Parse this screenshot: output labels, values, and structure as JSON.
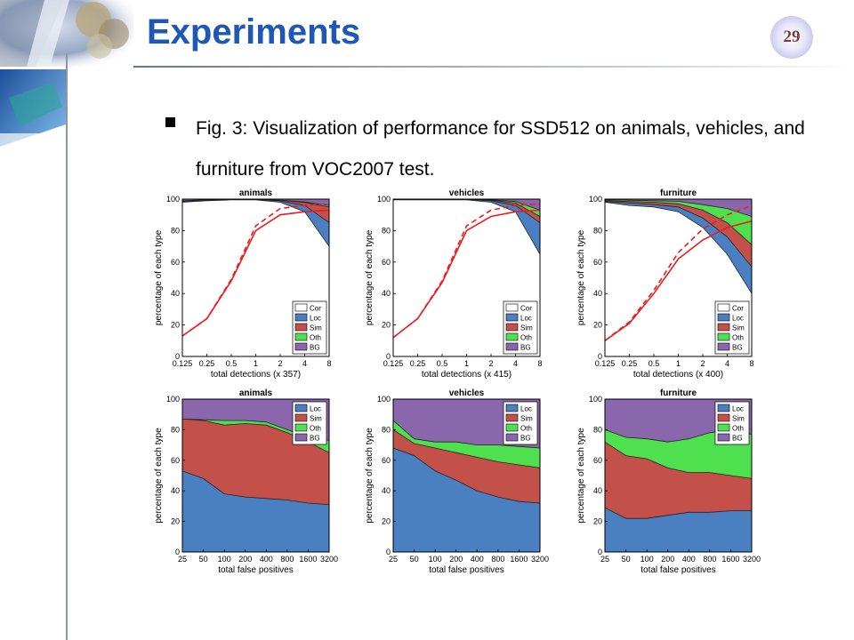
{
  "slide": {
    "title": "Experiments",
    "page_number": "29",
    "caption": "Fig. 3: Visualization of performance for SSD512 on animals, vehicles, and furniture from VOC2007 test.",
    "colors": {
      "title": "#1f57b5",
      "cor": "#ffffff",
      "loc": "#4a7fc1",
      "sim": "#c4504a",
      "oth": "#4fe04f",
      "bg": "#8a66ad",
      "curve": "#ee1c1c"
    }
  },
  "chart_data": [
    {
      "type": "area",
      "title": "animals",
      "xlabel": "total detections (x 357)",
      "ylabel": "percentage of each type",
      "x_scale": "log2",
      "x": [
        0.125,
        0.25,
        0.5,
        1,
        2,
        4,
        8
      ],
      "xticks": [
        "0.125",
        "0.25",
        "0.5",
        "1",
        "2",
        "4",
        "8"
      ],
      "ylim": [
        0,
        100
      ],
      "yticks": [
        "0",
        "20",
        "40",
        "60",
        "80",
        "100"
      ],
      "legend": [
        "Cor",
        "Loc",
        "Sim",
        "Oth",
        "BG"
      ],
      "legend_position": "lower-right",
      "boundaries": {
        "cor": [
          98,
          99,
          99.5,
          99.5,
          98,
          92,
          70
        ],
        "loc": [
          98.5,
          99.3,
          99.7,
          99.7,
          98.8,
          96,
          85
        ],
        "sim": [
          98.8,
          99.5,
          99.8,
          99.8,
          99.2,
          97.8,
          95
        ],
        "oth": [
          98.9,
          99.6,
          99.8,
          99.8,
          99.4,
          98.2,
          96
        ]
      },
      "recall_solid": [
        13,
        24,
        48,
        80,
        90,
        92,
        93
      ],
      "recall_dashed": [
        13,
        24,
        49,
        83,
        94,
        96,
        97
      ]
    },
    {
      "type": "area",
      "title": "vehicles",
      "xlabel": "total detections (x 415)",
      "ylabel": "percentage of each type",
      "x_scale": "log2",
      "x": [
        0.125,
        0.25,
        0.5,
        1,
        2,
        4,
        8
      ],
      "xticks": [
        "0.125",
        "0.25",
        "0.5",
        "1",
        "2",
        "4",
        "8"
      ],
      "ylim": [
        0,
        100
      ],
      "yticks": [
        "0",
        "20",
        "40",
        "60",
        "80",
        "100"
      ],
      "legend": [
        "Cor",
        "Loc",
        "Sim",
        "Oth",
        "BG"
      ],
      "legend_position": "lower-right",
      "boundaries": {
        "cor": [
          99.5,
          99.5,
          99.5,
          99.5,
          98,
          92,
          65
        ],
        "loc": [
          99.7,
          99.7,
          99.7,
          99.7,
          99,
          96,
          85
        ],
        "sim": [
          99.8,
          99.8,
          99.8,
          99.8,
          99.4,
          97.5,
          89
        ],
        "oth": [
          99.9,
          99.9,
          99.9,
          99.9,
          99.6,
          98.5,
          93
        ]
      },
      "recall_solid": [
        12,
        24,
        47,
        80,
        89,
        92,
        93
      ],
      "recall_dashed": [
        12,
        24,
        48,
        83,
        93,
        96,
        97
      ]
    },
    {
      "type": "area",
      "title": "furniture",
      "xlabel": "total detections (x 400)",
      "ylabel": "percentage of each type",
      "x_scale": "log2",
      "x": [
        0.125,
        0.25,
        0.5,
        1,
        2,
        4,
        8
      ],
      "xticks": [
        "0.125",
        "0.25",
        "0.5",
        "1",
        "2",
        "4",
        "8"
      ],
      "ylim": [
        0,
        100
      ],
      "yticks": [
        "0",
        "20",
        "40",
        "60",
        "80",
        "100"
      ],
      "legend": [
        "Cor",
        "Loc",
        "Sim",
        "Oth",
        "BG"
      ],
      "legend_position": "lower-right",
      "boundaries": {
        "cor": [
          98,
          96,
          95,
          92,
          82,
          65,
          40
        ],
        "loc": [
          98.5,
          97.5,
          96.5,
          95,
          88,
          76,
          57
        ],
        "sim": [
          99,
          98.5,
          98,
          97,
          93,
          85,
          71
        ],
        "oth": [
          99.5,
          99.3,
          99,
          98.6,
          96.5,
          94,
          89
        ]
      },
      "recall_solid": [
        10,
        21,
        40,
        62,
        74,
        82,
        86
      ],
      "recall_dashed": [
        10,
        22,
        42,
        66,
        81,
        90,
        96
      ]
    },
    {
      "type": "area",
      "title": "animals",
      "xlabel": "total false positives",
      "ylabel": "percentage of each type",
      "x": [
        25,
        50,
        100,
        200,
        400,
        800,
        1600,
        3200
      ],
      "xticks": [
        "25",
        "50",
        "100",
        "200",
        "400",
        "800",
        "1600",
        "3200"
      ],
      "ylim": [
        0,
        100
      ],
      "yticks": [
        "0",
        "20",
        "40",
        "60",
        "80",
        "100"
      ],
      "legend": [
        "Loc",
        "Sim",
        "Oth",
        "BG"
      ],
      "legend_position": "top-right",
      "boundaries": {
        "loc": [
          53,
          48,
          38,
          36,
          35,
          34,
          32,
          31
        ],
        "sim": [
          87,
          86,
          83,
          84,
          83,
          78,
          72,
          65
        ],
        "oth": [
          87,
          86.5,
          86,
          86,
          85,
          80,
          75,
          73
        ]
      }
    },
    {
      "type": "area",
      "title": "vehicles",
      "xlabel": "total false positives",
      "ylabel": "percentage of each type",
      "x": [
        25,
        50,
        100,
        200,
        400,
        800,
        1600,
        3200
      ],
      "xticks": [
        "25",
        "50",
        "100",
        "200",
        "400",
        "800",
        "1600",
        "3200"
      ],
      "ylim": [
        0,
        100
      ],
      "yticks": [
        "0",
        "20",
        "40",
        "60",
        "80",
        "100"
      ],
      "legend": [
        "Loc",
        "Sim",
        "Oth",
        "BG"
      ],
      "legend_position": "top-right",
      "boundaries": {
        "loc": [
          68,
          63,
          53,
          47,
          40,
          36,
          33,
          32
        ],
        "sim": [
          80,
          71,
          68,
          65,
          62,
          59,
          57,
          55
        ],
        "oth": [
          86,
          74,
          72,
          72,
          70,
          70,
          69,
          68
        ]
      }
    },
    {
      "type": "area",
      "title": "furniture",
      "xlabel": "total false positives",
      "ylabel": "percentage of each type",
      "x": [
        25,
        50,
        100,
        200,
        400,
        800,
        1600,
        3200
      ],
      "xticks": [
        "25",
        "50",
        "100",
        "200",
        "400",
        "800",
        "1600",
        "3200"
      ],
      "ylim": [
        0,
        100
      ],
      "yticks": [
        "0",
        "20",
        "40",
        "60",
        "80",
        "100"
      ],
      "legend": [
        "Loc",
        "Sim",
        "Oth",
        "BG"
      ],
      "legend_position": "top-right",
      "boundaries": {
        "loc": [
          29,
          22,
          22,
          24,
          26,
          26,
          27,
          27
        ],
        "sim": [
          72,
          63,
          61,
          55,
          52,
          52,
          50,
          48
        ],
        "oth": [
          80,
          75,
          74,
          72,
          74,
          78,
          80,
          77
        ]
      }
    }
  ]
}
